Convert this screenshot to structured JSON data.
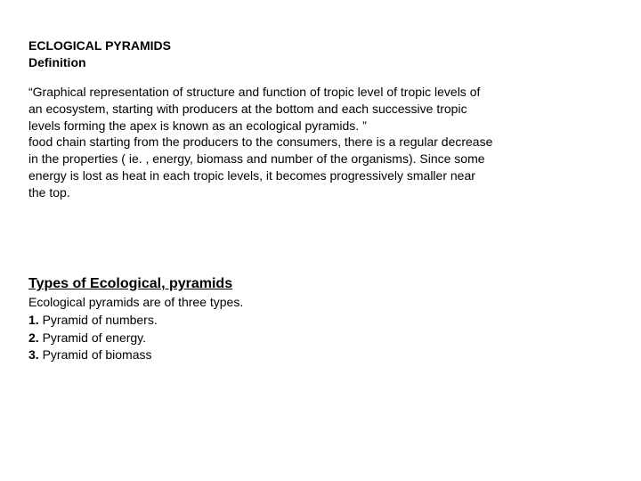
{
  "doc": {
    "title1": " ECLOGICAL PYRAMIDS",
    "title2": "Definition",
    "para_l1": "“Graphical representation of structure and function of tropic level of tropic levels of",
    "para_l2": "an ecosystem,  starting with producers at the bottom and each successive tropic",
    "para_l3": "levels forming the apex is known  as an ecological pyramids. ”",
    "para_l4": " food chain starting from the producers to the consumers, there is a regular decrease",
    "para_l5": " in the properties ( ie. , energy, biomass and number of the organisms). Since some",
    "para_l6": "energy is lost as  heat in each tropic levels, it becomes progressively smaller near",
    "para_l7": "the top.",
    "subheading": " Types of Ecological, pyramids",
    "intro": "Ecological pyramids are of three types.",
    "item1_prefix": "1. ",
    "item1_text": "Pyramid of numbers.",
    "item2_prefix": "2. ",
    "item2_text": "Pyramid of energy.",
    "item3_prefix": "3. ",
    "item3_text": "Pyramid of biomass"
  },
  "style": {
    "text_color": "#000000",
    "background_color": "#ffffff",
    "heading_fontsize": 14,
    "body_fontsize": 14,
    "subheading_fontsize": 16
  }
}
